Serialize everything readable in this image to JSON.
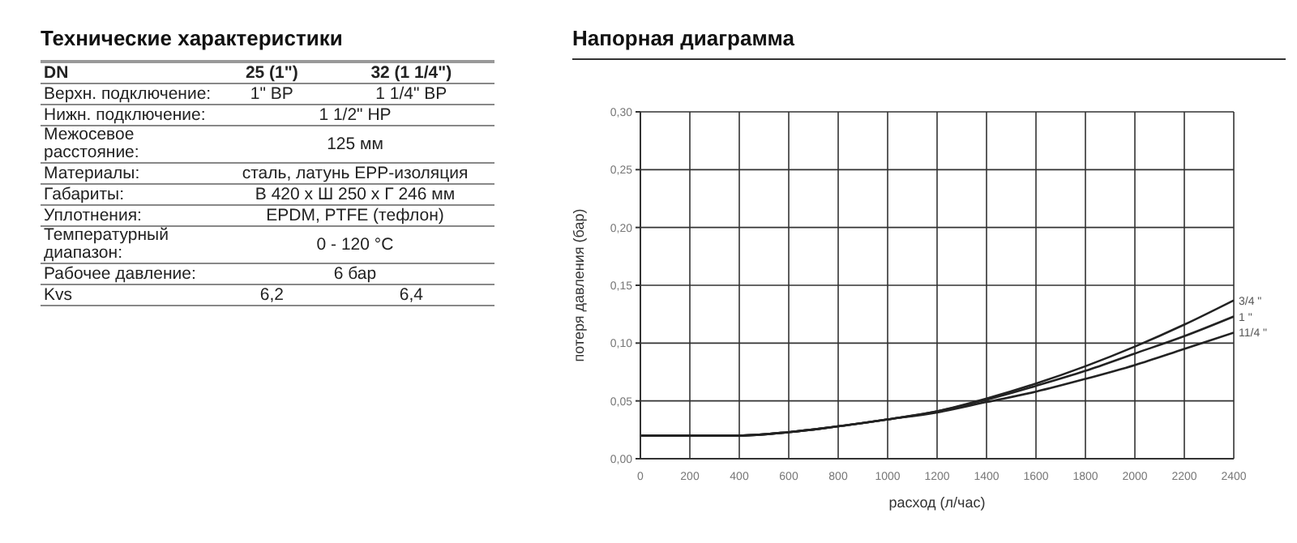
{
  "chart_data": [
    {
      "type": "other",
      "title": "Технические характеристики",
      "y_categories": [
        "DN",
        "Верхн. подключение:",
        "Нижн. подключение:",
        "Межосевое расстояние:",
        "Материалы:",
        "Габариты:",
        "Уплотнения:",
        "Температурный диапазон:",
        "Рабочее давление:",
        "Kvs"
      ],
      "cell_labels": [
        [
          "25 (1\")",
          "32 (1 1/4\")"
        ],
        [
          "1\" ВР",
          "1 1/4\" ВР"
        ],
        [
          "1 1/2\" НР"
        ],
        [
          "125 мм"
        ],
        [
          "сталь, латунь EPP-изоляция"
        ],
        [
          "В 420 х Ш 250 х Г 246 мм"
        ],
        [
          "EPDM, PTFE (тефлон)"
        ],
        [
          "0 - 120 °C"
        ],
        [
          "6 бар"
        ],
        [
          "6,2",
          "6,4"
        ]
      ]
    },
    {
      "type": "line",
      "title": "Напорная диаграмма",
      "xlabel": "расход (л/час)",
      "ylabel": "потеря давления (бар)",
      "x": [
        0,
        200,
        400,
        600,
        800,
        1000,
        1200,
        1400,
        1600,
        1800,
        2000,
        2200,
        2400
      ],
      "series": [
        {
          "name": "3/4 \"",
          "color": "#222222",
          "values": [
            0.02,
            0.02,
            0.02,
            0.023,
            0.028,
            0.034,
            0.041,
            0.052,
            0.065,
            0.08,
            0.097,
            0.116,
            0.137
          ]
        },
        {
          "name": "1 \"",
          "color": "#222222",
          "values": [
            0.02,
            0.02,
            0.02,
            0.023,
            0.028,
            0.034,
            0.041,
            0.051,
            0.063,
            0.076,
            0.091,
            0.106,
            0.123
          ]
        },
        {
          "name": "11/4 \"",
          "color": "#222222",
          "values": [
            0.02,
            0.02,
            0.02,
            0.023,
            0.028,
            0.034,
            0.04,
            0.049,
            0.058,
            0.069,
            0.081,
            0.095,
            0.109
          ]
        }
      ],
      "xlim": [
        0,
        2400
      ],
      "xticks": [
        0,
        200,
        400,
        600,
        800,
        1000,
        1200,
        1400,
        1600,
        1800,
        2000,
        2200,
        2400
      ],
      "ylim": [
        0,
        0.3
      ],
      "yticks": [
        {
          "value": 0,
          "label": "0,00"
        },
        {
          "value": 0.05,
          "label": "0,05"
        },
        {
          "value": 0.1,
          "label": "0,10"
        },
        {
          "value": 0.15,
          "label": "0,15"
        },
        {
          "value": 0.2,
          "label": "0,20"
        },
        {
          "value": 0.25,
          "label": "0,25"
        },
        {
          "value": 0.3,
          "label": "0,30"
        }
      ],
      "grid": true,
      "legend": false,
      "marker": "none",
      "line_style": "solid"
    }
  ]
}
